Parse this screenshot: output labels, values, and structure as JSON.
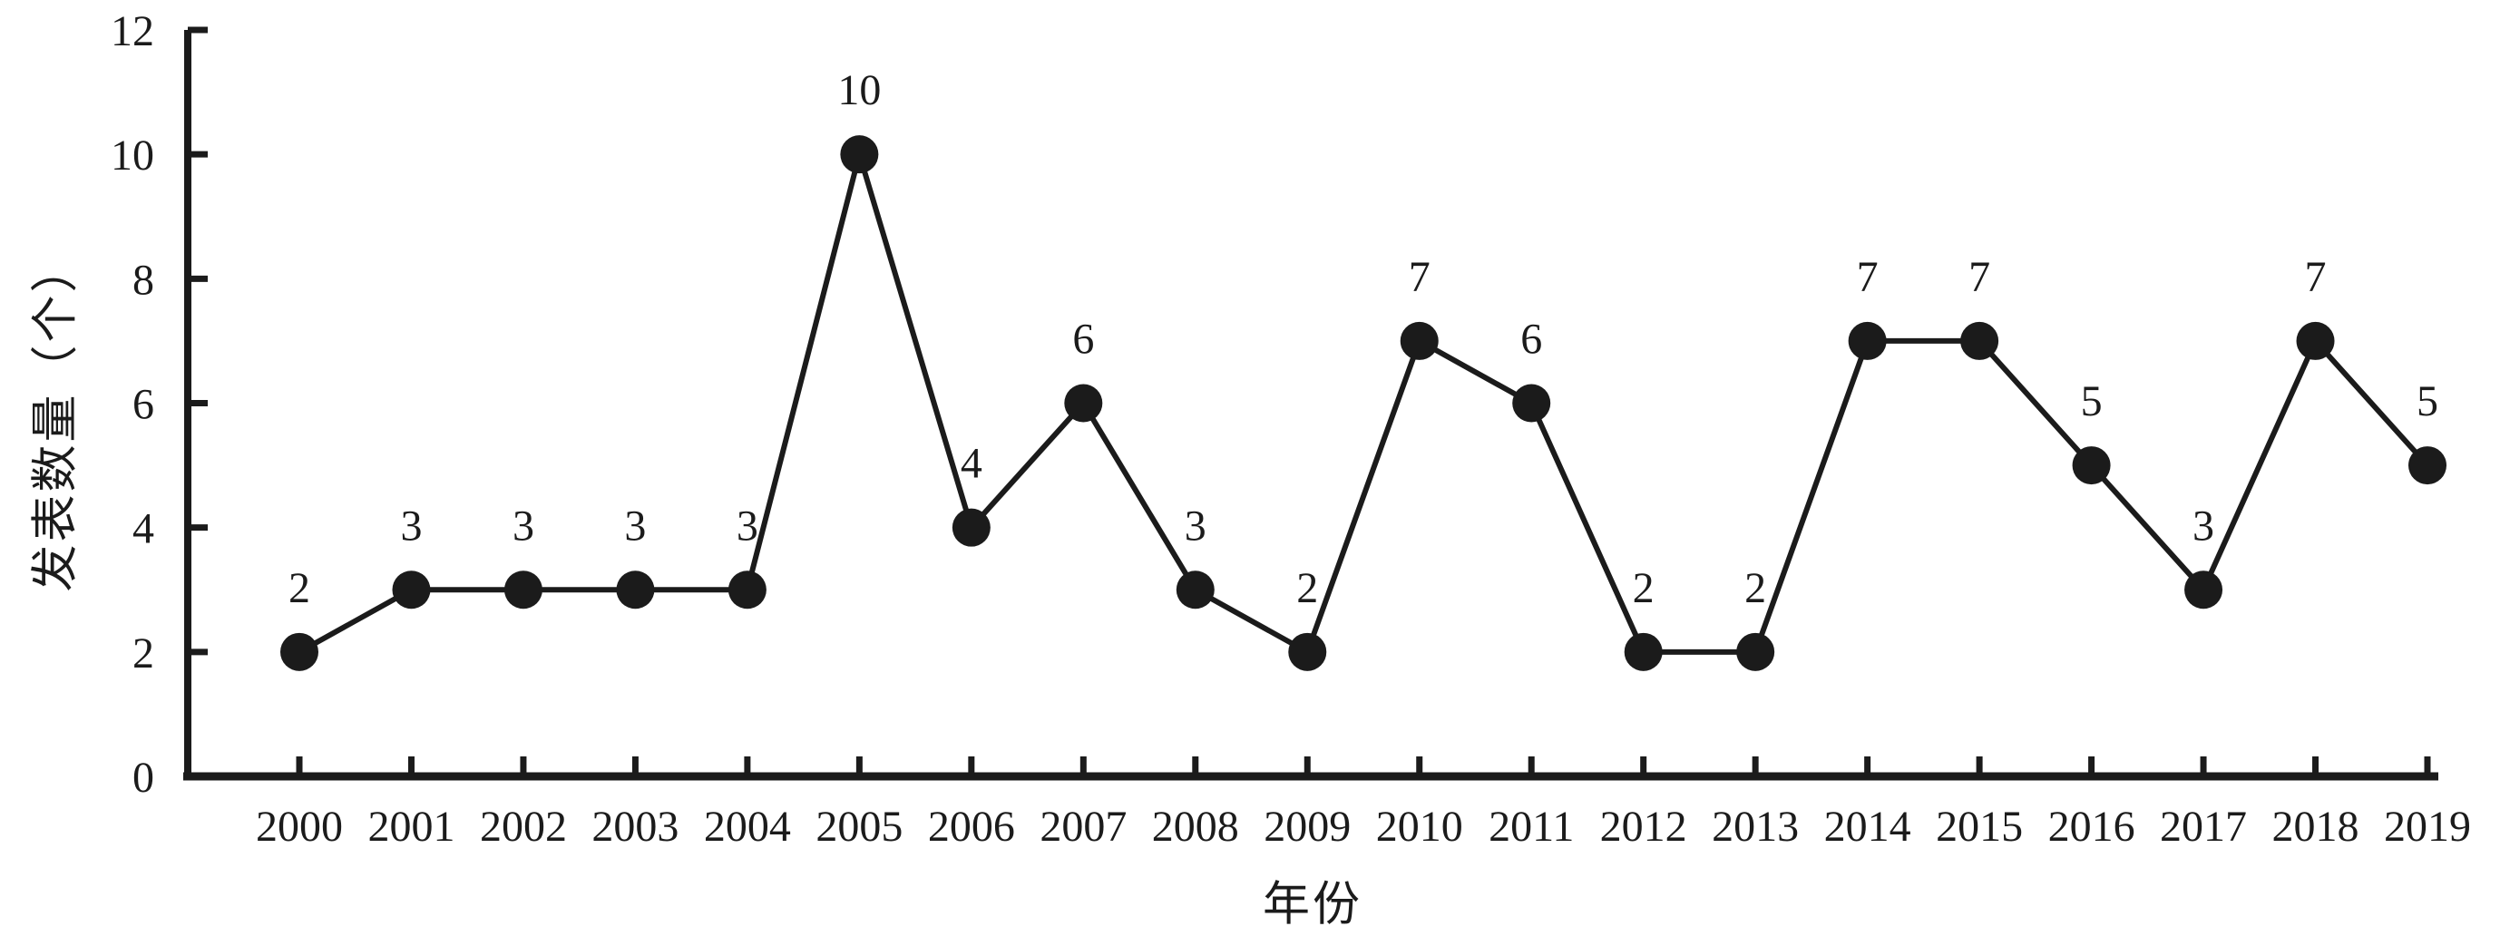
{
  "chart_data": {
    "type": "line",
    "xlabel": "年份",
    "ylabel": "发表数量（个）",
    "categories": [
      "2000",
      "2001",
      "2002",
      "2003",
      "2004",
      "2005",
      "2006",
      "2007",
      "2008",
      "2009",
      "2010",
      "2011",
      "2012",
      "2013",
      "2014",
      "2015",
      "2016",
      "2017",
      "2018",
      "2019"
    ],
    "series": [
      {
        "name": "发表数量",
        "values": [
          2,
          3,
          3,
          3,
          3,
          10,
          4,
          6,
          3,
          2,
          7,
          6,
          2,
          2,
          7,
          7,
          5,
          3,
          7,
          5
        ]
      }
    ],
    "point_labels": [
      "2",
      "3",
      "3",
      "3",
      "3",
      "10",
      "4",
      "6",
      "3",
      "2",
      "7",
      "6",
      "2",
      "2",
      "7",
      "7",
      "5",
      "3",
      "7",
      "5"
    ],
    "yticks": [
      "0",
      "2",
      "4",
      "6",
      "8",
      "10",
      "12"
    ],
    "ylim": [
      0,
      12
    ],
    "grid": false,
    "legend_position": "none",
    "marker": "filled-circle",
    "colors": {
      "ink": "#1b1b1b",
      "background": "#ffffff"
    }
  }
}
